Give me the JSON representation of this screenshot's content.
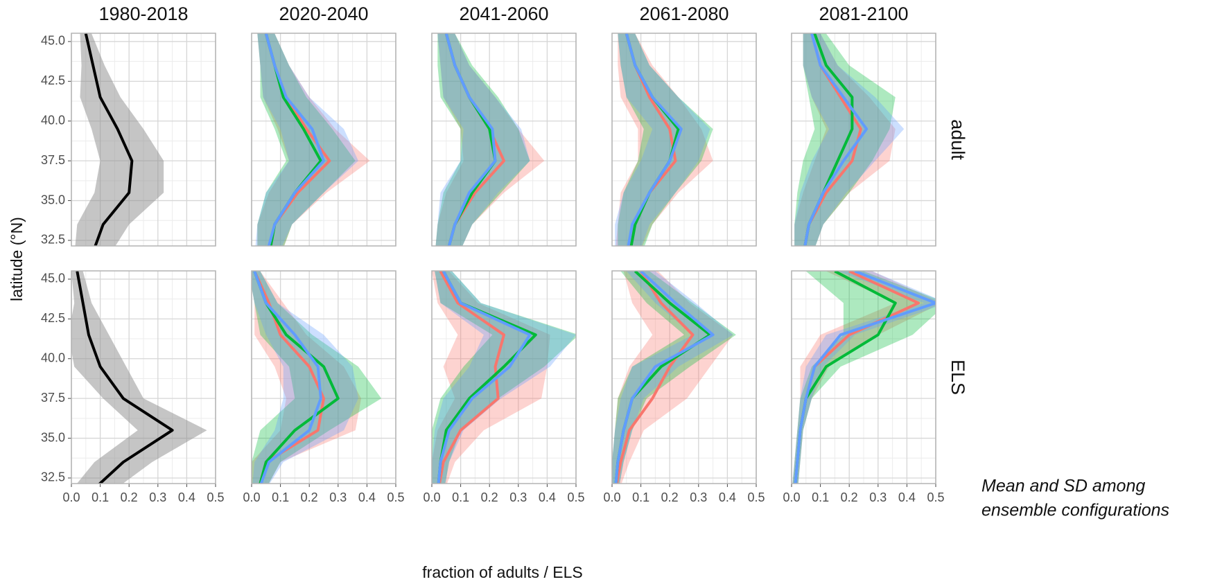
{
  "columns": [
    "1980-2018",
    "2020-2040",
    "2041-2060",
    "2061-2080",
    "2081-2100"
  ],
  "rows": [
    "adult",
    "ELS"
  ],
  "xlabel": "fraction of adults / ELS",
  "ylabel": "latitude (°N)",
  "annotation": [
    "Mean and SD among",
    "ensemble configurations"
  ],
  "chart_data": [
    {
      "type": "line",
      "y": [
        45.5,
        43.5,
        41.5,
        39.5,
        37.5,
        35.5,
        33.5,
        31.5
      ],
      "series": [
        {
          "color": "#000000",
          "band_color": "#8c8c8c",
          "values": [
            0.05,
            0.075,
            0.1,
            0.16,
            0.21,
            0.2,
            0.11,
            0.07
          ],
          "sd": [
            0.02,
            0.04,
            0.07,
            0.09,
            0.11,
            0.12,
            0.09,
            0.06
          ]
        }
      ],
      "xlim": [
        0,
        0.5
      ],
      "xticks": [
        {
          "value": 0,
          "label": "0.0"
        },
        0.1,
        0.2,
        0.3,
        0.4,
        0.5
      ],
      "ylim": [
        32.15,
        45.52
      ],
      "yticks": [
        32.5,
        {
          "value": 35,
          "label": "35.0"
        },
        37.5,
        {
          "value": 40,
          "label": "40.0"
        },
        42.5,
        {
          "value": 45,
          "label": "45.0"
        }
      ],
      "grid": true
    },
    {
      "type": "line",
      "y": [
        45.5,
        43.5,
        41.5,
        39.5,
        37.5,
        35.5,
        33.5,
        31.5
      ],
      "series": [
        {
          "color": "#F8766D",
          "values": [
            0.05,
            0.08,
            0.12,
            0.19,
            0.27,
            0.16,
            0.08,
            0.06
          ],
          "sd": [
            0.03,
            0.05,
            0.08,
            0.1,
            0.14,
            0.1,
            0.06,
            0.04
          ]
        },
        {
          "color": "#00BA38",
          "values": [
            0.05,
            0.08,
            0.11,
            0.18,
            0.24,
            0.15,
            0.08,
            0.06
          ],
          "sd": [
            0.03,
            0.05,
            0.08,
            0.1,
            0.12,
            0.1,
            0.06,
            0.04
          ]
        },
        {
          "color": "#619CFF",
          "values": [
            0.05,
            0.08,
            0.12,
            0.21,
            0.25,
            0.15,
            0.08,
            0.05
          ],
          "sd": [
            0.03,
            0.05,
            0.08,
            0.11,
            0.12,
            0.1,
            0.06,
            0.04
          ]
        }
      ],
      "xlim": [
        0,
        0.5
      ],
      "xticks": [
        {
          "value": 0,
          "label": "0.0"
        },
        0.1,
        0.2,
        0.3,
        0.4,
        0.5
      ],
      "ylim": [
        32.15,
        45.52
      ],
      "yticks": [
        32.5,
        {
          "value": 35,
          "label": "35.0"
        },
        37.5,
        {
          "value": 40,
          "label": "40.0"
        },
        42.5,
        {
          "value": 45,
          "label": "45.0"
        }
      ],
      "grid": true
    },
    {
      "type": "line",
      "y": [
        45.5,
        43.5,
        41.5,
        39.5,
        37.5,
        35.5,
        33.5,
        31.5
      ],
      "series": [
        {
          "color": "#F8766D",
          "values": [
            0.05,
            0.08,
            0.13,
            0.2,
            0.25,
            0.15,
            0.08,
            0.05
          ],
          "sd": [
            0.03,
            0.05,
            0.09,
            0.1,
            0.14,
            0.1,
            0.06,
            0.04
          ]
        },
        {
          "color": "#00BA38",
          "values": [
            0.05,
            0.08,
            0.13,
            0.2,
            0.22,
            0.14,
            0.08,
            0.05
          ],
          "sd": [
            0.03,
            0.06,
            0.1,
            0.1,
            0.12,
            0.1,
            0.06,
            0.04
          ]
        },
        {
          "color": "#619CFF",
          "values": [
            0.05,
            0.08,
            0.13,
            0.21,
            0.22,
            0.13,
            0.08,
            0.05
          ],
          "sd": [
            0.03,
            0.05,
            0.09,
            0.1,
            0.12,
            0.1,
            0.06,
            0.04
          ]
        }
      ],
      "xlim": [
        0,
        0.5
      ],
      "xticks": [
        {
          "value": 0,
          "label": "0.0"
        },
        0.1,
        0.2,
        0.3,
        0.4,
        0.5
      ],
      "ylim": [
        32.15,
        45.52
      ],
      "yticks": [
        32.5,
        {
          "value": 35,
          "label": "35.0"
        },
        37.5,
        {
          "value": 40,
          "label": "40.0"
        },
        42.5,
        {
          "value": 45,
          "label": "45.0"
        }
      ],
      "grid": true
    },
    {
      "type": "line",
      "y": [
        45.5,
        43.5,
        41.5,
        39.5,
        37.5,
        35.5,
        33.5,
        31.5
      ],
      "series": [
        {
          "color": "#F8766D",
          "values": [
            0.05,
            0.08,
            0.13,
            0.2,
            0.22,
            0.13,
            0.08,
            0.05
          ],
          "sd": [
            0.03,
            0.06,
            0.1,
            0.11,
            0.13,
            0.1,
            0.06,
            0.04
          ]
        },
        {
          "color": "#00BA38",
          "values": [
            0.05,
            0.08,
            0.14,
            0.23,
            0.2,
            0.13,
            0.08,
            0.06
          ],
          "sd": [
            0.03,
            0.05,
            0.09,
            0.12,
            0.11,
            0.09,
            0.06,
            0.04
          ]
        },
        {
          "color": "#619CFF",
          "values": [
            0.05,
            0.08,
            0.14,
            0.24,
            0.2,
            0.13,
            0.07,
            0.05
          ],
          "sd": [
            0.03,
            0.05,
            0.09,
            0.1,
            0.1,
            0.09,
            0.06,
            0.04
          ]
        }
      ],
      "xlim": [
        0,
        0.5
      ],
      "xticks": [
        {
          "value": 0,
          "label": "0.0"
        },
        0.1,
        0.2,
        0.3,
        0.4,
        0.5
      ],
      "ylim": [
        32.15,
        45.52
      ],
      "yticks": [
        32.5,
        {
          "value": 35,
          "label": "35.0"
        },
        37.5,
        {
          "value": 40,
          "label": "40.0"
        },
        42.5,
        {
          "value": 45,
          "label": "45.0"
        }
      ],
      "grid": true
    },
    {
      "type": "line",
      "y": [
        45.5,
        43.5,
        41.5,
        39.5,
        37.5,
        35.5,
        33.5,
        31.5
      ],
      "series": [
        {
          "color": "#F8766D",
          "values": [
            0.07,
            0.1,
            0.17,
            0.24,
            0.21,
            0.12,
            0.06,
            0.04
          ],
          "sd": [
            0.03,
            0.06,
            0.1,
            0.12,
            0.13,
            0.08,
            0.05,
            0.03
          ]
        },
        {
          "color": "#00BA38",
          "values": [
            0.08,
            0.12,
            0.21,
            0.21,
            0.16,
            0.11,
            0.06,
            0.04
          ],
          "sd": [
            0.04,
            0.08,
            0.15,
            0.13,
            0.12,
            0.09,
            0.05,
            0.03
          ]
        },
        {
          "color": "#619CFF",
          "values": [
            0.07,
            0.1,
            0.18,
            0.26,
            0.18,
            0.11,
            0.06,
            0.04
          ],
          "sd": [
            0.03,
            0.06,
            0.11,
            0.13,
            0.11,
            0.08,
            0.05,
            0.03
          ]
        }
      ],
      "xlim": [
        0,
        0.5
      ],
      "xticks": [
        {
          "value": 0,
          "label": "0.0"
        },
        0.1,
        0.2,
        0.3,
        0.4,
        0.5
      ],
      "ylim": [
        32.15,
        45.52
      ],
      "yticks": [
        32.5,
        {
          "value": 35,
          "label": "35.0"
        },
        37.5,
        {
          "value": 40,
          "label": "40.0"
        },
        42.5,
        {
          "value": 45,
          "label": "45.0"
        }
      ],
      "grid": true
    },
    {
      "type": "line",
      "y": [
        45.5,
        43.5,
        41.5,
        39.5,
        37.5,
        35.5,
        33.5,
        31.5
      ],
      "series": [
        {
          "color": "#000000",
          "band_color": "#8c8c8c",
          "values": [
            0.02,
            0.04,
            0.06,
            0.1,
            0.18,
            0.35,
            0.18,
            0.06
          ],
          "sd": [
            0.02,
            0.03,
            0.07,
            0.09,
            0.07,
            0.12,
            0.1,
            0.07
          ]
        }
      ],
      "xlim": [
        0,
        0.5
      ],
      "xticks": [
        {
          "value": 0,
          "label": "0.0"
        },
        0.1,
        0.2,
        0.3,
        0.4,
        0.5
      ],
      "ylim": [
        32.15,
        45.52
      ],
      "yticks": [
        32.5,
        {
          "value": 35,
          "label": "35.0"
        },
        37.5,
        {
          "value": 40,
          "label": "40.0"
        },
        42.5,
        {
          "value": 45,
          "label": "45.0"
        }
      ],
      "grid": true
    },
    {
      "type": "line",
      "y": [
        45.5,
        43.5,
        41.5,
        39.5,
        37.5,
        35.5,
        33.5,
        31.5
      ],
      "series": [
        {
          "color": "#F8766D",
          "values": [
            0.01,
            0.06,
            0.1,
            0.2,
            0.25,
            0.23,
            0.05,
            0.02
          ],
          "sd": [
            0.02,
            0.05,
            0.09,
            0.12,
            0.13,
            0.13,
            0.05,
            0.02
          ]
        },
        {
          "color": "#00BA38",
          "values": [
            0.01,
            0.05,
            0.12,
            0.25,
            0.3,
            0.15,
            0.05,
            0.02
          ],
          "sd": [
            0.02,
            0.04,
            0.09,
            0.12,
            0.15,
            0.12,
            0.05,
            0.02
          ]
        },
        {
          "color": "#619CFF",
          "values": [
            0.01,
            0.05,
            0.15,
            0.23,
            0.24,
            0.2,
            0.06,
            0.02
          ],
          "sd": [
            0.02,
            0.04,
            0.1,
            0.12,
            0.13,
            0.12,
            0.05,
            0.02
          ]
        }
      ],
      "xlim": [
        0,
        0.5
      ],
      "xticks": [
        {
          "value": 0,
          "label": "0.0"
        },
        0.1,
        0.2,
        0.3,
        0.4,
        0.5
      ],
      "ylim": [
        32.15,
        45.52
      ],
      "yticks": [
        32.5,
        {
          "value": 35,
          "label": "35.0"
        },
        37.5,
        {
          "value": 40,
          "label": "40.0"
        },
        42.5,
        {
          "value": 45,
          "label": "45.0"
        }
      ],
      "grid": true
    },
    {
      "type": "line",
      "y": [
        45.5,
        43.5,
        41.5,
        39.5,
        37.5,
        35.5,
        33.5,
        31.5
      ],
      "series": [
        {
          "color": "#F8766D",
          "values": [
            0.03,
            0.09,
            0.25,
            0.22,
            0.23,
            0.1,
            0.04,
            0.02
          ],
          "sd": [
            0.03,
            0.07,
            0.16,
            0.18,
            0.15,
            0.08,
            0.04,
            0.02
          ]
        },
        {
          "color": "#00BA38",
          "values": [
            0.04,
            0.1,
            0.36,
            0.25,
            0.13,
            0.05,
            0.03,
            0.02
          ],
          "sd": [
            0.03,
            0.07,
            0.15,
            0.14,
            0.1,
            0.05,
            0.03,
            0.02
          ]
        },
        {
          "color": "#619CFF",
          "values": [
            0.04,
            0.1,
            0.34,
            0.27,
            0.14,
            0.06,
            0.03,
            0.02
          ],
          "sd": [
            0.03,
            0.07,
            0.16,
            0.14,
            0.1,
            0.05,
            0.03,
            0.02
          ]
        }
      ],
      "xlim": [
        0,
        0.5
      ],
      "xticks": [
        {
          "value": 0,
          "label": "0.0"
        },
        0.1,
        0.2,
        0.3,
        0.4,
        0.5
      ],
      "ylim": [
        32.15,
        45.52
      ],
      "yticks": [
        32.5,
        {
          "value": 35,
          "label": "35.0"
        },
        37.5,
        {
          "value": 40,
          "label": "40.0"
        },
        42.5,
        {
          "value": 45,
          "label": "45.0"
        }
      ],
      "grid": true
    },
    {
      "type": "line",
      "y": [
        45.5,
        43.5,
        41.5,
        39.5,
        37.5,
        35.5,
        33.5,
        31.5
      ],
      "series": [
        {
          "color": "#F8766D",
          "values": [
            0.1,
            0.17,
            0.28,
            0.2,
            0.14,
            0.06,
            0.03,
            0.01
          ],
          "sd": [
            0.06,
            0.1,
            0.14,
            0.14,
            0.12,
            0.05,
            0.03,
            0.01
          ]
        },
        {
          "color": "#00BA38",
          "values": [
            0.08,
            0.2,
            0.34,
            0.17,
            0.07,
            0.04,
            0.02,
            0.01
          ],
          "sd": [
            0.05,
            0.08,
            0.09,
            0.1,
            0.05,
            0.03,
            0.02,
            0.01
          ]
        },
        {
          "color": "#619CFF",
          "values": [
            0.1,
            0.22,
            0.35,
            0.15,
            0.07,
            0.04,
            0.02,
            0.01
          ],
          "sd": [
            0.05,
            0.07,
            0.07,
            0.08,
            0.04,
            0.03,
            0.02,
            0.01
          ]
        }
      ],
      "xlim": [
        0,
        0.5
      ],
      "xticks": [
        {
          "value": 0,
          "label": "0.0"
        },
        0.1,
        0.2,
        0.3,
        0.4,
        0.5
      ],
      "ylim": [
        32.15,
        45.52
      ],
      "yticks": [
        32.5,
        {
          "value": 35,
          "label": "35.0"
        },
        37.5,
        {
          "value": 40,
          "label": "40.0"
        },
        42.5,
        {
          "value": 45,
          "label": "45.0"
        }
      ],
      "grid": true
    },
    {
      "type": "line",
      "y": [
        45.5,
        43.5,
        41.5,
        39.5,
        37.5,
        35.5,
        33.5,
        31.5
      ],
      "series": [
        {
          "color": "#F8766D",
          "values": [
            0.2,
            0.44,
            0.2,
            0.08,
            0.05,
            0.03,
            0.02,
            0.01
          ],
          "sd": [
            0.08,
            0.08,
            0.1,
            0.05,
            0.02,
            0.01,
            0.01,
            0.01
          ]
        },
        {
          "color": "#00BA38",
          "values": [
            0.15,
            0.36,
            0.3,
            0.12,
            0.05,
            0.03,
            0.02,
            0.01
          ],
          "sd": [
            0.1,
            0.18,
            0.12,
            0.05,
            0.02,
            0.01,
            0.01,
            0.01
          ]
        },
        {
          "color": "#619CFF",
          "values": [
            0.22,
            0.5,
            0.17,
            0.08,
            0.05,
            0.03,
            0.02,
            0.01
          ],
          "sd": [
            0.06,
            0.04,
            0.05,
            0.03,
            0.02,
            0.01,
            0.01,
            0.01
          ]
        }
      ],
      "xlim": [
        0,
        0.5
      ],
      "xticks": [
        {
          "value": 0,
          "label": "0.0"
        },
        0.1,
        0.2,
        0.3,
        0.4,
        0.5
      ],
      "ylim": [
        32.15,
        45.52
      ],
      "yticks": [
        32.5,
        {
          "value": 35,
          "label": "35.0"
        },
        37.5,
        {
          "value": 40,
          "label": "40.0"
        },
        42.5,
        {
          "value": 45,
          "label": "45.0"
        }
      ],
      "grid": true
    }
  ]
}
